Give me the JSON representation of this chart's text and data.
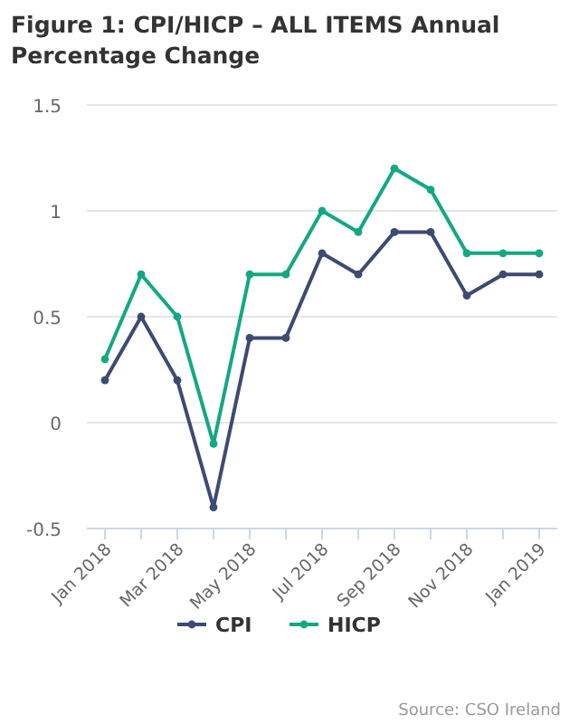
{
  "chart_data": {
    "type": "line",
    "title": "Figure 1: CPI/HICP – ALL ITEMS Annual Percentage Change",
    "categories": [
      "Jan 2018",
      null,
      "Mar 2018",
      null,
      "May 2018",
      null,
      "Jul 2018",
      null,
      "Sep 2018",
      null,
      "Nov 2018",
      null,
      "Jan 2019"
    ],
    "series": [
      {
        "name": "CPI",
        "color": "#3d4a73",
        "values": [
          0.2,
          0.5,
          0.2,
          -0.4,
          0.4,
          0.4,
          0.8,
          0.7,
          0.9,
          0.9,
          0.6,
          0.7,
          0.7
        ]
      },
      {
        "name": "HICP",
        "color": "#13a884",
        "values": [
          0.3,
          0.7,
          0.5,
          -0.1,
          0.7,
          0.7,
          1.0,
          0.9,
          1.2,
          1.1,
          0.8,
          0.8,
          0.8
        ]
      }
    ],
    "ylim": [
      -0.5,
      1.5
    ],
    "yticks": [
      -0.5,
      0,
      0.5,
      1,
      1.5
    ],
    "grid": "y",
    "legend": "bottom",
    "marker": "circle",
    "line_style": "solid",
    "annotations": [
      "Source: CSO Ireland"
    ]
  }
}
